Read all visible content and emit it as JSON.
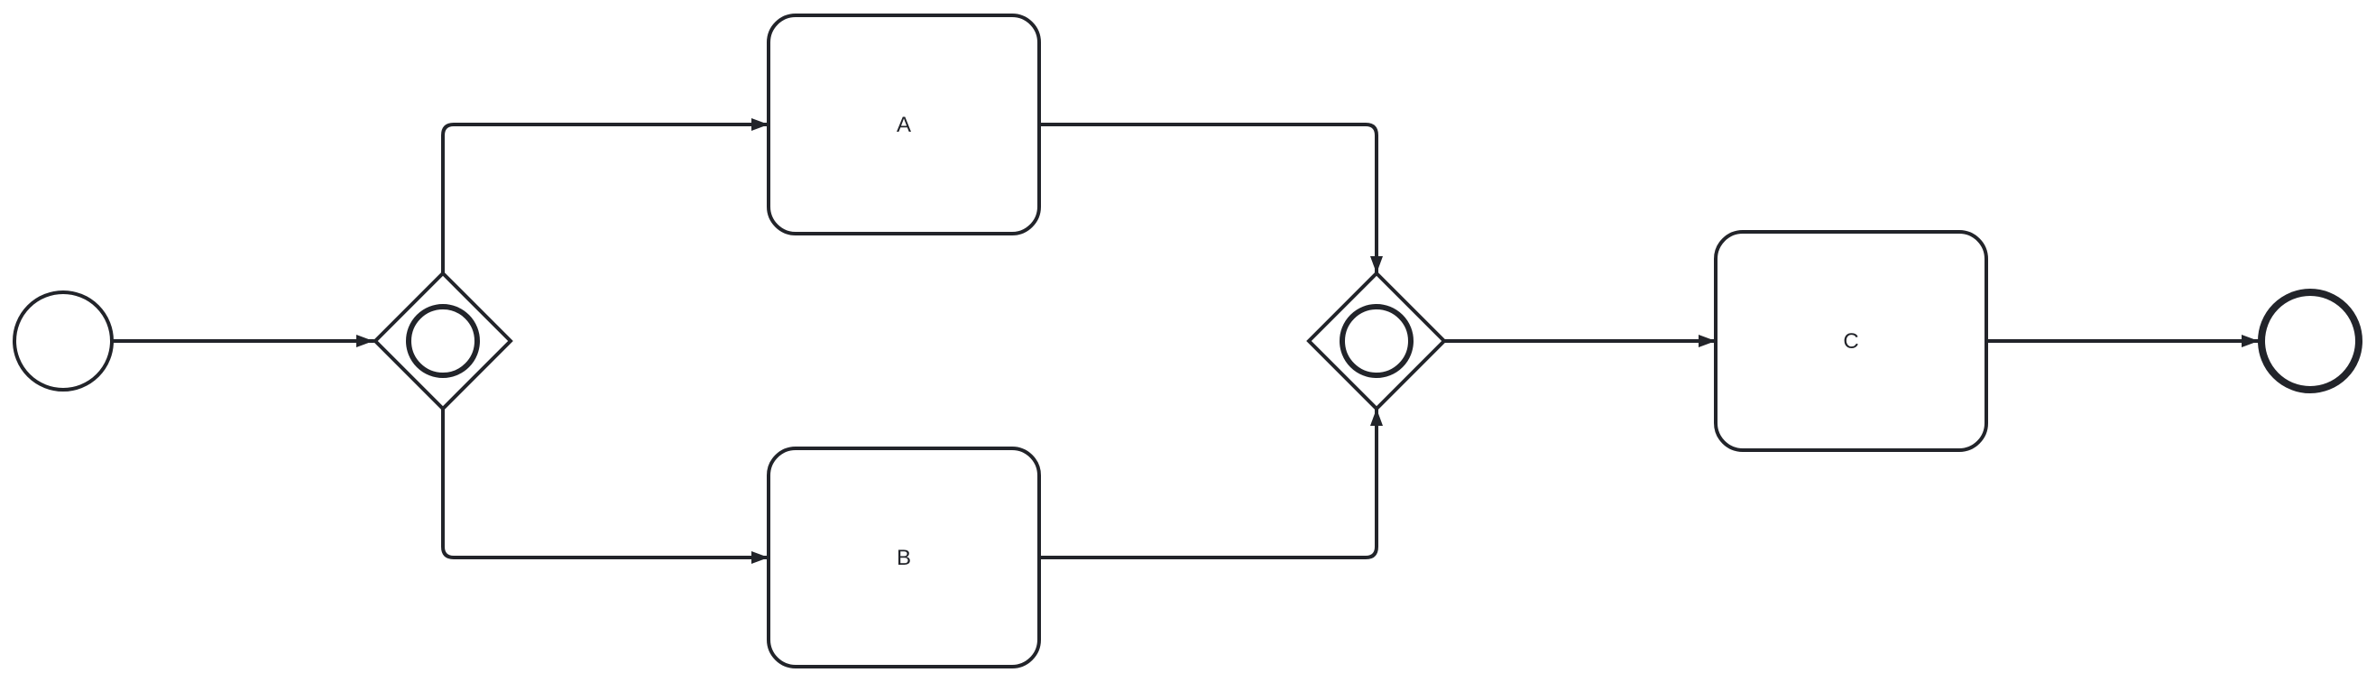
{
  "diagram": {
    "type": "bpmn-process",
    "colors": {
      "stroke": "#22242a",
      "fill": "#ffffff"
    },
    "nodes": [
      {
        "id": "start",
        "kind": "start-event",
        "label": ""
      },
      {
        "id": "split",
        "kind": "inclusive-gateway",
        "label": ""
      },
      {
        "id": "task_a",
        "kind": "task",
        "label": "A"
      },
      {
        "id": "task_b",
        "kind": "task",
        "label": "B"
      },
      {
        "id": "join",
        "kind": "inclusive-gateway",
        "label": ""
      },
      {
        "id": "task_c",
        "kind": "task",
        "label": "C"
      },
      {
        "id": "end",
        "kind": "end-event",
        "label": ""
      }
    ],
    "edges": [
      {
        "from": "start",
        "to": "split"
      },
      {
        "from": "split",
        "to": "task_a"
      },
      {
        "from": "split",
        "to": "task_b"
      },
      {
        "from": "task_a",
        "to": "join"
      },
      {
        "from": "task_b",
        "to": "join"
      },
      {
        "from": "join",
        "to": "task_c"
      },
      {
        "from": "task_c",
        "to": "end"
      }
    ]
  }
}
